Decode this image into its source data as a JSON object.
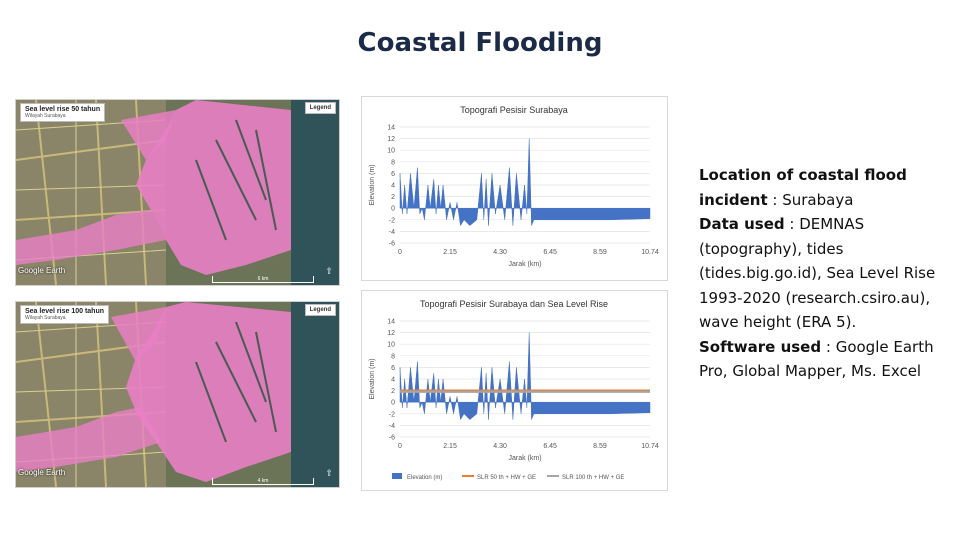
{
  "title": "Coastal Flooding",
  "maps": [
    {
      "label": "Sea level rise 50 tahun",
      "sublabel": "Wilayah Surabaya",
      "legend": "Legend",
      "watermark": "Google Earth",
      "scale": "6 km"
    },
    {
      "label": "Sea level rise 100 tahun",
      "sublabel": "Wilayah Surabaya",
      "legend": "Legend",
      "watermark": "Google Earth",
      "scale": "4 km"
    }
  ],
  "colors": {
    "title": "#1b2a47",
    "elevation": "#4472c4",
    "slr50": "#ed7d31",
    "slr100": "#a5a5a5",
    "flood": "#e87fc5"
  },
  "chart_data": [
    {
      "type": "area",
      "title": "Topografi Pesisir Surabaya",
      "xlabel": "Jarak (km)",
      "ylabel": "Elevation (m)",
      "xticks": [
        "0",
        "2.15",
        "4.30",
        "6.45",
        "8.59",
        "10.74"
      ],
      "xlim": [
        0,
        10.74
      ],
      "ylim": [
        -6,
        14
      ],
      "yticks": [
        -6,
        -4,
        -2,
        0,
        2,
        4,
        6,
        8,
        10,
        12,
        14
      ],
      "series": [
        {
          "name": "Elevation (m)",
          "x": [
            0,
            0.1,
            0.2,
            0.3,
            0.45,
            0.6,
            0.75,
            0.85,
            0.95,
            1.05,
            1.2,
            1.3,
            1.45,
            1.55,
            1.65,
            1.75,
            1.85,
            2.0,
            2.15,
            2.3,
            2.45,
            2.6,
            2.75,
            3.0,
            3.3,
            3.5,
            3.6,
            3.7,
            3.8,
            3.95,
            4.1,
            4.3,
            4.5,
            4.7,
            4.85,
            5.0,
            5.2,
            5.35,
            5.45,
            5.55,
            5.65,
            5.75,
            6.0,
            7.0,
            8.0,
            9.0,
            10.74
          ],
          "values": [
            6,
            -1,
            4,
            -1,
            6,
            0,
            7,
            -1,
            0,
            -2,
            4,
            0,
            5,
            -1,
            4,
            0,
            4,
            -2,
            1,
            -2,
            1,
            -3,
            -2,
            -3,
            -2,
            6,
            -2,
            5,
            -3,
            6,
            -1,
            4,
            -2,
            7,
            -3,
            6,
            -2,
            4,
            -1,
            12,
            -3,
            -2,
            -2,
            -2,
            -2,
            -2,
            -1.8
          ]
        }
      ]
    },
    {
      "type": "area",
      "title": "Topografi Pesisir Surabaya dan Sea Level Rise",
      "xlabel": "Jarak (km)",
      "ylabel": "Elevation (m)",
      "xticks": [
        "0",
        "2.15",
        "4.30",
        "6.45",
        "8.59",
        "10.74"
      ],
      "xlim": [
        0,
        10.74
      ],
      "ylim": [
        -6,
        14
      ],
      "yticks": [
        -6,
        -4,
        -2,
        0,
        2,
        4,
        6,
        8,
        10,
        12,
        14
      ],
      "series": [
        {
          "name": "Elevation (m)",
          "x": [
            0,
            0.1,
            0.2,
            0.3,
            0.45,
            0.6,
            0.75,
            0.85,
            0.95,
            1.05,
            1.2,
            1.3,
            1.45,
            1.55,
            1.65,
            1.75,
            1.85,
            2.0,
            2.15,
            2.3,
            2.45,
            2.6,
            2.75,
            3.0,
            3.3,
            3.5,
            3.6,
            3.7,
            3.8,
            3.95,
            4.1,
            4.3,
            4.5,
            4.7,
            4.85,
            5.0,
            5.2,
            5.35,
            5.45,
            5.55,
            5.65,
            5.75,
            6.0,
            7.0,
            8.0,
            9.0,
            10.74
          ],
          "values": [
            6,
            -1,
            4,
            -1,
            6,
            0,
            7,
            -1,
            0,
            -2,
            4,
            0,
            5,
            -1,
            4,
            0,
            4,
            -2,
            1,
            -2,
            1,
            -3,
            -2,
            -3,
            -2,
            6,
            -2,
            5,
            -3,
            6,
            -1,
            4,
            -2,
            7,
            -3,
            6,
            -2,
            4,
            -1,
            12,
            -3,
            -2,
            -2,
            -2,
            -2,
            -2,
            -1.8
          ]
        },
        {
          "name": "SLR 50 th + HW + GE",
          "x": [
            0,
            10.74
          ],
          "values": [
            2.0,
            2.0
          ]
        },
        {
          "name": "SLR 100 th + HW + GE",
          "x": [
            0,
            10.74
          ],
          "values": [
            1.8,
            1.8
          ]
        }
      ],
      "legend": [
        "Elevation (m)",
        "SLR 50 th + HW + GE",
        "SLR 100 th + HW + GE"
      ]
    }
  ],
  "info": {
    "location_label": "Location of coastal flood incident",
    "location_value": " : Surabaya",
    "data_label": "Data used",
    "data_value": " :  DEMNAS (topography), tides (tides.big.go.id), Sea Level Rise 1993-2020 (research.csiro.au), wave height (ERA 5).",
    "software_label": "Software used",
    "software_value": " : Google Earth Pro, Global Mapper, Ms. Excel"
  }
}
